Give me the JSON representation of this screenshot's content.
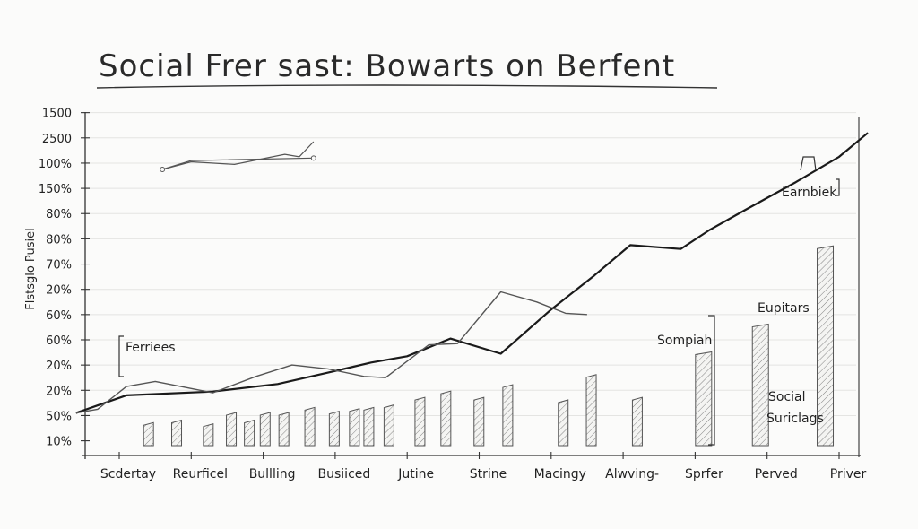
{
  "chart_data": {
    "type": "bar",
    "title": "Social Frer sast: Bowarts on Berfent",
    "ylabel": "Flstsglo Pusiel",
    "xlabel": "",
    "y_tick_labels": [
      "1500",
      "2500",
      "100%",
      "150%",
      "80%",
      "80%",
      "70%",
      "20%",
      "60%",
      "60%",
      "20%",
      "20%",
      "50%",
      "10%"
    ],
    "categories": [
      "Scdertay",
      "Reurficel",
      "Bullling",
      "Busiiced",
      "Jutine",
      "Strine",
      "Macingy",
      "Alwving-",
      "Sprfer",
      "Perved",
      "Priver"
    ],
    "ylim": [
      0,
      13
    ],
    "bars": [
      {
        "x": 0.32,
        "value": 0.7
      },
      {
        "x": 0.71,
        "value": 0.8
      },
      {
        "x": 1.15,
        "value": 0.65
      },
      {
        "x": 1.47,
        "value": 1.1
      },
      {
        "x": 1.72,
        "value": 0.8
      },
      {
        "x": 1.94,
        "value": 1.1
      },
      {
        "x": 2.2,
        "value": 1.1
      },
      {
        "x": 2.56,
        "value": 1.3
      },
      {
        "x": 2.9,
        "value": 1.15
      },
      {
        "x": 3.18,
        "value": 1.25
      },
      {
        "x": 3.38,
        "value": 1.3
      },
      {
        "x": 3.66,
        "value": 1.4
      },
      {
        "x": 4.09,
        "value": 1.7
      },
      {
        "x": 4.45,
        "value": 1.95
      },
      {
        "x": 4.91,
        "value": 1.7
      },
      {
        "x": 5.31,
        "value": 2.2
      },
      {
        "x": 6.08,
        "value": 1.6
      },
      {
        "x": 6.47,
        "value": 2.6
      },
      {
        "x": 7.11,
        "value": 1.7
      },
      {
        "x": 8.03,
        "value": 3.5
      },
      {
        "x": 8.82,
        "value": 4.6
      },
      {
        "x": 9.72,
        "value": 7.7
      }
    ],
    "series": [
      {
        "values": [
          [
            -0.6,
            1.15
          ],
          [
            0.1,
            1.85
          ],
          [
            1.3,
            2.0
          ],
          [
            2.2,
            2.3
          ],
          [
            2.9,
            2.75
          ],
          [
            3.5,
            3.15
          ],
          [
            4.0,
            3.4
          ],
          [
            4.6,
            4.1
          ],
          [
            5.3,
            3.5
          ],
          [
            6.0,
            5.25
          ],
          [
            6.6,
            6.6
          ],
          [
            7.1,
            7.8
          ],
          [
            7.8,
            7.65
          ],
          [
            8.2,
            8.4
          ],
          [
            8.7,
            9.2
          ],
          [
            9.4,
            10.3
          ],
          [
            10.0,
            11.3
          ],
          [
            10.4,
            12.25
          ]
        ]
      },
      {
        "values": [
          [
            -0.6,
            1.15
          ],
          [
            -0.3,
            1.3
          ],
          [
            0.1,
            2.2
          ],
          [
            0.5,
            2.4
          ],
          [
            1.3,
            1.95
          ],
          [
            1.9,
            2.6
          ],
          [
            2.4,
            3.05
          ],
          [
            2.9,
            2.9
          ],
          [
            3.4,
            2.6
          ],
          [
            3.7,
            2.55
          ],
          [
            4.3,
            3.85
          ],
          [
            4.7,
            3.9
          ],
          [
            5.3,
            5.95
          ],
          [
            5.8,
            5.55
          ],
          [
            6.2,
            5.1
          ],
          [
            6.5,
            5.05
          ]
        ]
      },
      {
        "values": [
          [
            0.6,
            10.8
          ],
          [
            1.0,
            11.1
          ],
          [
            1.6,
            11.0
          ],
          [
            2.3,
            11.4
          ],
          [
            2.5,
            11.3
          ],
          [
            2.7,
            11.9
          ]
        ]
      },
      {
        "values": [
          [
            0.6,
            10.8
          ],
          [
            1.0,
            11.15
          ],
          [
            2.7,
            11.25
          ]
        ]
      }
    ],
    "annotations": [
      "Ferriees",
      "Earnbiek",
      "Eupitars",
      "Sompiah",
      "Social",
      "Suriclags"
    ],
    "grid": true
  }
}
